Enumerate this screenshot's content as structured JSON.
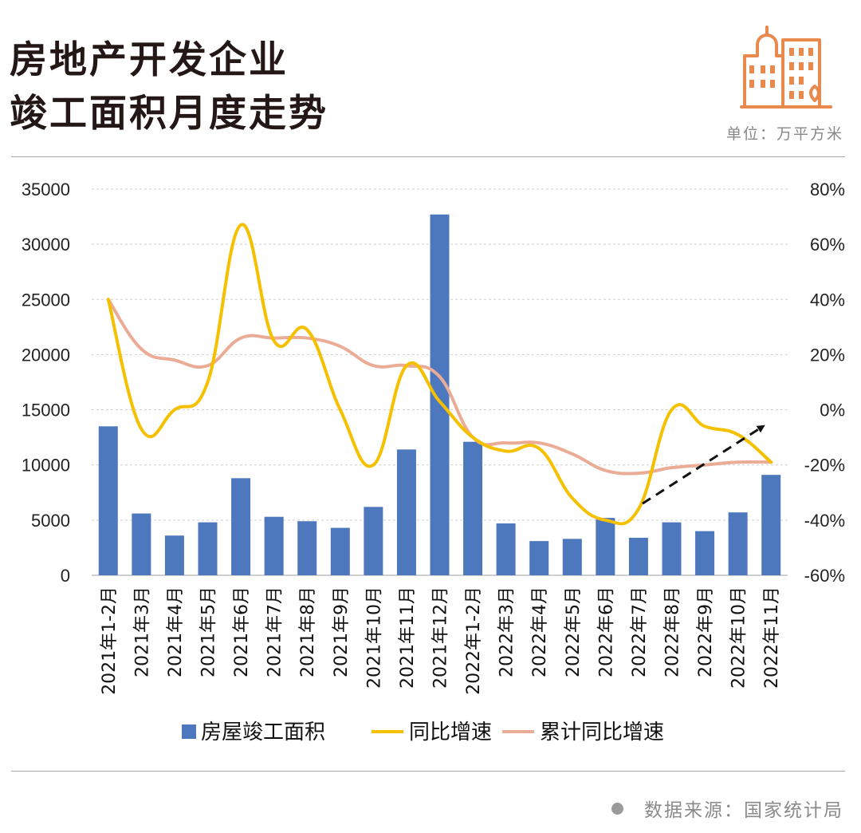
{
  "header": {
    "title_line1": "房地产开发企业",
    "title_line2": "竣工面积月度走势",
    "unit": "单位：万平方米"
  },
  "footer": {
    "source": "数据来源：国家统计局"
  },
  "colors": {
    "bar": "#4E78BE",
    "yoy_line": "#F5C000",
    "cumulative_line": "#EBAC96",
    "trend_arrow": "#111111",
    "grid": "#cfcfcf",
    "logo": "#E8894D"
  },
  "icons": {
    "logo": "city-buildings-icon"
  },
  "chart_data": {
    "type": "bar",
    "categories": [
      "2021年1-2月",
      "2021年3月",
      "2021年4月",
      "2021年5月",
      "2021年6月",
      "2021年7月",
      "2021年8月",
      "2021年9月",
      "2021年10月",
      "2021年11月",
      "2021年12月",
      "2022年1-2月",
      "2022年3月",
      "2022年4月",
      "2022年5月",
      "2022年6月",
      "2022年7月",
      "2022年8月",
      "2022年9月",
      "2022年10月",
      "2022年11月"
    ],
    "series": [
      {
        "name": "房屋竣工面积",
        "type": "bar",
        "axis": "left",
        "values": [
          13500,
          5600,
          3600,
          4800,
          8800,
          5300,
          4900,
          4300,
          6200,
          11400,
          32700,
          12100,
          4700,
          3100,
          3300,
          5200,
          3400,
          4800,
          4000,
          5700,
          9100
        ]
      },
      {
        "name": "同比增速",
        "type": "line",
        "axis": "right",
        "values": [
          40,
          -7,
          0,
          10,
          67,
          25,
          29,
          0,
          -20,
          16,
          3,
          -10,
          -15,
          -14,
          -32,
          -40,
          -36,
          0,
          -6,
          -9,
          -19
        ]
      },
      {
        "name": "累计同比增速",
        "type": "line",
        "axis": "right",
        "values": [
          40,
          22,
          18,
          16,
          26,
          26,
          26,
          23,
          16,
          16,
          12,
          -10,
          -12,
          -12,
          -16,
          -22,
          -23,
          -21,
          -20,
          -19,
          -19
        ]
      }
    ],
    "y_left": {
      "ylim": [
        0,
        35000
      ],
      "ticks": [
        0,
        5000,
        10000,
        15000,
        20000,
        25000,
        30000,
        35000
      ]
    },
    "y_right": {
      "ylim": [
        -60,
        80
      ],
      "ticks": [
        "-60%",
        "-40%",
        "-20%",
        "0%",
        "20%",
        "40%",
        "60%",
        "80%"
      ],
      "tick_values": [
        -60,
        -40,
        -20,
        0,
        20,
        40,
        60,
        80
      ]
    },
    "annotation": {
      "type": "dashed-arrow",
      "from": {
        "category": "2022年7月",
        "value": -34
      },
      "to": {
        "category": "2022年11月",
        "value": -6
      }
    },
    "grid": true,
    "legend": "bottom"
  }
}
